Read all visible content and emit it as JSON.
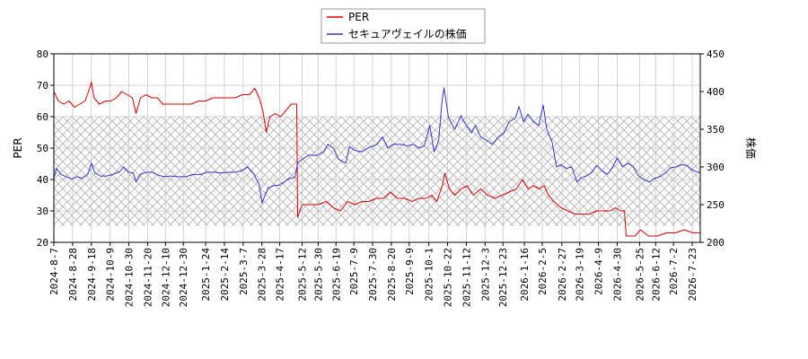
{
  "chart_data": {
    "type": "line",
    "legend": {
      "placement": "top-center",
      "entries": [
        {
          "label": "PER",
          "color": "#dd0000"
        },
        {
          "label": "セキュアヴェイルの株価",
          "color": "#3333cc"
        }
      ]
    },
    "ylabel_left": "PER",
    "ylabel_right": "株価",
    "ylim_left": [
      20,
      80
    ],
    "ylim_right": [
      200,
      450
    ],
    "yticks_left": [
      20,
      30,
      40,
      50,
      60,
      70,
      80
    ],
    "yticks_right": [
      200,
      250,
      300,
      350,
      400,
      450
    ],
    "x_range": [
      "2024-08-07",
      "2026-08-01"
    ],
    "xticks": [
      "2024-8-7",
      "2024-8-28",
      "2024-9-18",
      "2024-10-9",
      "2024-10-30",
      "2024-11-20",
      "2024-12-10",
      "2024-12-30",
      "2025-1-24",
      "2025-2-14",
      "2025-3-7",
      "2025-3-28",
      "2025-4-17",
      "2025-5-12",
      "2025-5-30",
      "2025-6-19",
      "2025-7-9",
      "2025-7-30",
      "2025-8-20",
      "2025-9-9",
      "2025-10-1",
      "2025-10-22",
      "2025-11-12",
      "2025-12-3",
      "2025-12-23",
      "2026-1-16",
      "2026-2-5",
      "2026-2-27",
      "2026-3-19",
      "2026-4-9",
      "2026-4-30",
      "2026-5-25",
      "2026-6-12",
      "2026-7-2",
      "2026-7-23"
    ],
    "hatch_band_right": [
      222,
      367
    ],
    "grid": true,
    "series": [
      {
        "name": "PER",
        "axis": "left",
        "color": "#dd0000",
        "points": [
          [
            "2024-08-07",
            68
          ],
          [
            "2024-08-12",
            65
          ],
          [
            "2024-08-18",
            64
          ],
          [
            "2024-08-24",
            65
          ],
          [
            "2024-08-30",
            63
          ],
          [
            "2024-09-05",
            64
          ],
          [
            "2024-09-11",
            65
          ],
          [
            "2024-09-16",
            69
          ],
          [
            "2024-09-18",
            71
          ],
          [
            "2024-09-21",
            66
          ],
          [
            "2024-09-27",
            64
          ],
          [
            "2024-10-04",
            65
          ],
          [
            "2024-10-10",
            65
          ],
          [
            "2024-10-16",
            66
          ],
          [
            "2024-10-22",
            68
          ],
          [
            "2024-10-28",
            67
          ],
          [
            "2024-11-03",
            66
          ],
          [
            "2024-11-07",
            61
          ],
          [
            "2024-11-12",
            66
          ],
          [
            "2024-11-18",
            67
          ],
          [
            "2024-11-25",
            66
          ],
          [
            "2024-12-01",
            66
          ],
          [
            "2024-12-07",
            64
          ],
          [
            "2024-12-14",
            64
          ],
          [
            "2024-12-22",
            64
          ],
          [
            "2024-12-30",
            64
          ],
          [
            "2025-01-08",
            64
          ],
          [
            "2025-01-16",
            65
          ],
          [
            "2025-01-24",
            65
          ],
          [
            "2025-02-01",
            66
          ],
          [
            "2025-02-10",
            66
          ],
          [
            "2025-02-18",
            66
          ],
          [
            "2025-02-26",
            66
          ],
          [
            "2025-03-06",
            67
          ],
          [
            "2025-03-14",
            67
          ],
          [
            "2025-03-20",
            69
          ],
          [
            "2025-03-25",
            66
          ],
          [
            "2025-03-29",
            62
          ],
          [
            "2025-04-02",
            55
          ],
          [
            "2025-04-06",
            60
          ],
          [
            "2025-04-12",
            61
          ],
          [
            "2025-04-18",
            60
          ],
          [
            "2025-04-24",
            62
          ],
          [
            "2025-04-30",
            64
          ],
          [
            "2025-05-04",
            64
          ],
          [
            "2025-05-06",
            64
          ],
          [
            "2025-05-07",
            28
          ],
          [
            "2025-05-12",
            32
          ],
          [
            "2025-05-20",
            32
          ],
          [
            "2025-05-30",
            32
          ],
          [
            "2025-06-08",
            33
          ],
          [
            "2025-06-16",
            31
          ],
          [
            "2025-06-24",
            30
          ],
          [
            "2025-07-02",
            33
          ],
          [
            "2025-07-10",
            32
          ],
          [
            "2025-07-18",
            33
          ],
          [
            "2025-07-26",
            33
          ],
          [
            "2025-08-03",
            34
          ],
          [
            "2025-08-11",
            34
          ],
          [
            "2025-08-19",
            36
          ],
          [
            "2025-08-27",
            34
          ],
          [
            "2025-09-04",
            34
          ],
          [
            "2025-09-12",
            33
          ],
          [
            "2025-09-20",
            34
          ],
          [
            "2025-09-28",
            34
          ],
          [
            "2025-10-04",
            35
          ],
          [
            "2025-10-10",
            33
          ],
          [
            "2025-10-16",
            38
          ],
          [
            "2025-10-19",
            42
          ],
          [
            "2025-10-24",
            37
          ],
          [
            "2025-10-30",
            35
          ],
          [
            "2025-11-06",
            37
          ],
          [
            "2025-11-13",
            38
          ],
          [
            "2025-11-20",
            35
          ],
          [
            "2025-11-28",
            37
          ],
          [
            "2025-12-06",
            35
          ],
          [
            "2025-12-14",
            34
          ],
          [
            "2025-12-22",
            35
          ],
          [
            "2025-12-30",
            36
          ],
          [
            "2026-01-07",
            37
          ],
          [
            "2026-01-14",
            40
          ],
          [
            "2026-01-20",
            37
          ],
          [
            "2026-01-26",
            38
          ],
          [
            "2026-02-02",
            37
          ],
          [
            "2026-02-07",
            38
          ],
          [
            "2026-02-12",
            35
          ],
          [
            "2026-02-18",
            33
          ],
          [
            "2026-02-26",
            31
          ],
          [
            "2026-03-06",
            30
          ],
          [
            "2026-03-14",
            29
          ],
          [
            "2026-03-22",
            29
          ],
          [
            "2026-03-30",
            29
          ],
          [
            "2026-04-07",
            30
          ],
          [
            "2026-04-14",
            30
          ],
          [
            "2026-04-22",
            30
          ],
          [
            "2026-04-28",
            31
          ],
          [
            "2026-05-04",
            30
          ],
          [
            "2026-05-08",
            30
          ],
          [
            "2026-05-10",
            22
          ],
          [
            "2026-05-20",
            22
          ],
          [
            "2026-05-26",
            24
          ],
          [
            "2026-06-04",
            22
          ],
          [
            "2026-06-14",
            22
          ],
          [
            "2026-06-24",
            23
          ],
          [
            "2026-07-04",
            23
          ],
          [
            "2026-07-14",
            24
          ],
          [
            "2026-07-24",
            23
          ],
          [
            "2026-08-01",
            23
          ]
        ]
      },
      {
        "name": "セキュアヴェイルの株価",
        "axis": "right",
        "color": "#3333cc",
        "points": [
          [
            "2024-08-07",
            285
          ],
          [
            "2024-08-10",
            298
          ],
          [
            "2024-08-15",
            290
          ],
          [
            "2024-08-21",
            287
          ],
          [
            "2024-08-27",
            284
          ],
          [
            "2024-09-02",
            287
          ],
          [
            "2024-09-08",
            285
          ],
          [
            "2024-09-14",
            290
          ],
          [
            "2024-09-18",
            305
          ],
          [
            "2024-09-22",
            292
          ],
          [
            "2024-09-28",
            288
          ],
          [
            "2024-10-05",
            288
          ],
          [
            "2024-10-12",
            290
          ],
          [
            "2024-10-20",
            294
          ],
          [
            "2024-10-24",
            300
          ],
          [
            "2024-10-30",
            293
          ],
          [
            "2024-11-04",
            292
          ],
          [
            "2024-11-07",
            280
          ],
          [
            "2024-11-12",
            290
          ],
          [
            "2024-11-18",
            293
          ],
          [
            "2024-11-25",
            293
          ],
          [
            "2024-12-02",
            289
          ],
          [
            "2024-12-08",
            287
          ],
          [
            "2024-12-16",
            288
          ],
          [
            "2024-12-24",
            287
          ],
          [
            "2025-01-02",
            287
          ],
          [
            "2025-01-10",
            290
          ],
          [
            "2025-01-18",
            290
          ],
          [
            "2025-01-26",
            293
          ],
          [
            "2025-02-03",
            293
          ],
          [
            "2025-02-11",
            292
          ],
          [
            "2025-02-19",
            293
          ],
          [
            "2025-02-27",
            293
          ],
          [
            "2025-03-07",
            296
          ],
          [
            "2025-03-12",
            300
          ],
          [
            "2025-03-19",
            290
          ],
          [
            "2025-03-25",
            277
          ],
          [
            "2025-03-28",
            252
          ],
          [
            "2025-04-04",
            272
          ],
          [
            "2025-04-10",
            275
          ],
          [
            "2025-04-16",
            276
          ],
          [
            "2025-04-22",
            280
          ],
          [
            "2025-04-28",
            285
          ],
          [
            "2025-05-04",
            286
          ],
          [
            "2025-05-07",
            305
          ],
          [
            "2025-05-12",
            310
          ],
          [
            "2025-05-20",
            316
          ],
          [
            "2025-05-28",
            315
          ],
          [
            "2025-06-05",
            320
          ],
          [
            "2025-06-10",
            330
          ],
          [
            "2025-06-16",
            325
          ],
          [
            "2025-06-22",
            310
          ],
          [
            "2025-06-30",
            305
          ],
          [
            "2025-07-04",
            327
          ],
          [
            "2025-07-10",
            322
          ],
          [
            "2025-07-18",
            320
          ],
          [
            "2025-07-26",
            326
          ],
          [
            "2025-08-04",
            330
          ],
          [
            "2025-08-10",
            340
          ],
          [
            "2025-08-16",
            325
          ],
          [
            "2025-08-22",
            330
          ],
          [
            "2025-08-30",
            330
          ],
          [
            "2025-09-07",
            328
          ],
          [
            "2025-09-14",
            330
          ],
          [
            "2025-09-20",
            325
          ],
          [
            "2025-09-26",
            328
          ],
          [
            "2025-10-02",
            355
          ],
          [
            "2025-10-07",
            320
          ],
          [
            "2025-10-12",
            335
          ],
          [
            "2025-10-16",
            390
          ],
          [
            "2025-10-18",
            405
          ],
          [
            "2025-10-23",
            365
          ],
          [
            "2025-10-30",
            350
          ],
          [
            "2025-11-06",
            368
          ],
          [
            "2025-11-12",
            355
          ],
          [
            "2025-11-18",
            345
          ],
          [
            "2025-11-22",
            355
          ],
          [
            "2025-11-28",
            340
          ],
          [
            "2025-12-05",
            335
          ],
          [
            "2025-12-11",
            330
          ],
          [
            "2025-12-18",
            340
          ],
          [
            "2025-12-24",
            345
          ],
          [
            "2025-12-30",
            360
          ],
          [
            "2026-01-06",
            365
          ],
          [
            "2026-01-10",
            380
          ],
          [
            "2026-01-15",
            360
          ],
          [
            "2026-01-20",
            370
          ],
          [
            "2026-01-26",
            360
          ],
          [
            "2026-02-01",
            355
          ],
          [
            "2026-02-06",
            382
          ],
          [
            "2026-02-10",
            350
          ],
          [
            "2026-02-16",
            333
          ],
          [
            "2026-02-21",
            300
          ],
          [
            "2026-02-26",
            303
          ],
          [
            "2026-03-04",
            298
          ],
          [
            "2026-03-10",
            300
          ],
          [
            "2026-03-16",
            280
          ],
          [
            "2026-03-20",
            285
          ],
          [
            "2026-03-26",
            288
          ],
          [
            "2026-04-01",
            292
          ],
          [
            "2026-04-07",
            302
          ],
          [
            "2026-04-13",
            295
          ],
          [
            "2026-04-19",
            290
          ],
          [
            "2026-04-25",
            300
          ],
          [
            "2026-04-30",
            312
          ],
          [
            "2026-05-06",
            300
          ],
          [
            "2026-05-12",
            305
          ],
          [
            "2026-05-18",
            300
          ],
          [
            "2026-05-24",
            288
          ],
          [
            "2026-05-30",
            283
          ],
          [
            "2026-06-05",
            280
          ],
          [
            "2026-06-11",
            285
          ],
          [
            "2026-06-17",
            287
          ],
          [
            "2026-06-23",
            292
          ],
          [
            "2026-06-29",
            299
          ],
          [
            "2026-07-05",
            300
          ],
          [
            "2026-07-11",
            303
          ],
          [
            "2026-07-17",
            302
          ],
          [
            "2026-07-23",
            296
          ],
          [
            "2026-08-01",
            292
          ]
        ]
      }
    ]
  }
}
